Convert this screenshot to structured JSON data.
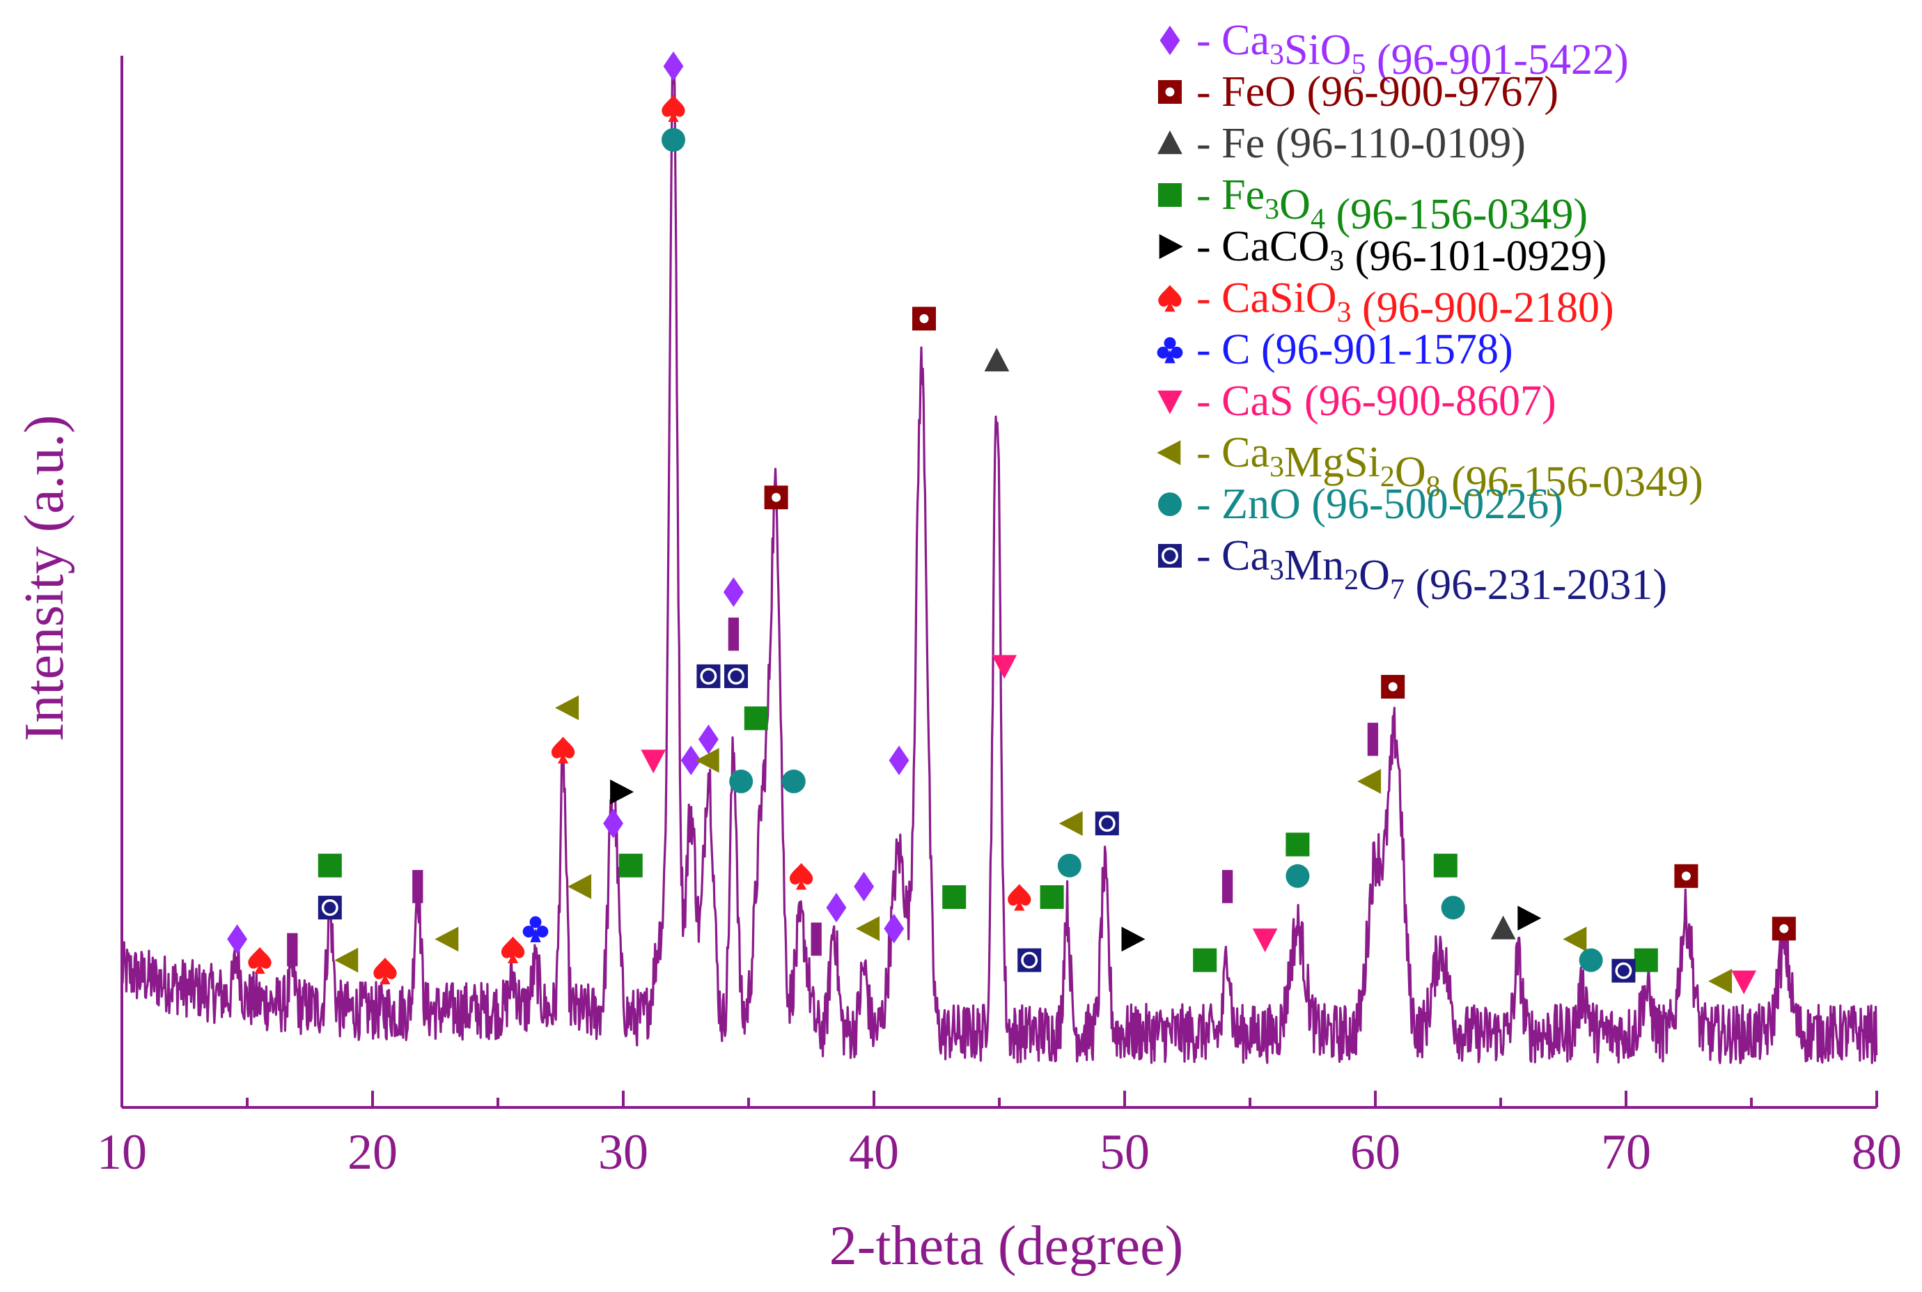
{
  "chart_data": {
    "type": "line",
    "title": "",
    "xlabel": "2-theta (degree)",
    "ylabel": "Intensity (a.u.)",
    "xlim": [
      10,
      80
    ],
    "ylim": [
      0,
      100
    ],
    "x_ticks": [
      "10",
      "20",
      "30",
      "40",
      "50",
      "60",
      "70",
      "80"
    ],
    "axis_color": "#8B1A8B",
    "line_color": "#8B1A8B",
    "baseline": 7,
    "noise": 2.8,
    "peaks": [
      {
        "x": 14.6,
        "h": 4,
        "w": 0.12
      },
      {
        "x": 16.8,
        "h": 3,
        "w": 0.12
      },
      {
        "x": 18.3,
        "h": 9,
        "w": 0.12
      },
      {
        "x": 21.8,
        "h": 12,
        "w": 0.12
      },
      {
        "x": 25.6,
        "h": 3,
        "w": 0.15
      },
      {
        "x": 26.5,
        "h": 4,
        "w": 0.15
      },
      {
        "x": 27.6,
        "h": 24,
        "w": 0.12
      },
      {
        "x": 29.6,
        "h": 22,
        "w": 0.18
      },
      {
        "x": 31.5,
        "h": 8,
        "w": 0.25
      },
      {
        "x": 32.0,
        "h": 90,
        "w": 0.16
      },
      {
        "x": 32.7,
        "h": 20,
        "w": 0.2
      },
      {
        "x": 33.4,
        "h": 24,
        "w": 0.2
      },
      {
        "x": 34.4,
        "h": 26,
        "w": 0.14
      },
      {
        "x": 35.6,
        "h": 22,
        "w": 0.3
      },
      {
        "x": 36.1,
        "h": 45,
        "w": 0.2
      },
      {
        "x": 37.1,
        "h": 10,
        "w": 0.25
      },
      {
        "x": 38.4,
        "h": 10,
        "w": 0.15
      },
      {
        "x": 39.6,
        "h": 6,
        "w": 0.15
      },
      {
        "x": 41.0,
        "h": 17,
        "w": 0.3
      },
      {
        "x": 41.9,
        "h": 63,
        "w": 0.22
      },
      {
        "x": 44.9,
        "h": 60,
        "w": 0.15
      },
      {
        "x": 47.7,
        "h": 12,
        "w": 0.12
      },
      {
        "x": 49.2,
        "h": 15,
        "w": 0.15
      },
      {
        "x": 54.1,
        "h": 8,
        "w": 0.12
      },
      {
        "x": 56.9,
        "h": 10,
        "w": 0.3
      },
      {
        "x": 60.0,
        "h": 16,
        "w": 0.3
      },
      {
        "x": 60.8,
        "h": 28,
        "w": 0.3
      },
      {
        "x": 62.6,
        "h": 8,
        "w": 0.3
      },
      {
        "x": 65.7,
        "h": 7,
        "w": 0.15
      },
      {
        "x": 68.3,
        "h": 4,
        "w": 0.2
      },
      {
        "x": 70.8,
        "h": 4,
        "w": 0.2
      },
      {
        "x": 72.4,
        "h": 11,
        "w": 0.25
      },
      {
        "x": 76.3,
        "h": 8,
        "w": 0.25
      }
    ],
    "markers": [
      {
        "phase": "Ca3SiO5",
        "positions": [
          [
            14.6,
            16
          ],
          [
            29.6,
            27
          ],
          [
            32.0,
            99
          ],
          [
            32.7,
            33
          ],
          [
            33.4,
            35
          ],
          [
            34.4,
            49
          ],
          [
            38.5,
            19
          ],
          [
            39.6,
            21
          ],
          [
            40.8,
            17
          ],
          [
            41.0,
            33
          ]
        ]
      },
      {
        "phase": "FeO",
        "positions": [
          [
            36.1,
            58
          ],
          [
            42.0,
            75
          ],
          [
            60.7,
            40
          ],
          [
            72.4,
            22
          ],
          [
            76.3,
            17
          ]
        ]
      },
      {
        "phase": "Fe",
        "positions": [
          [
            44.9,
            71
          ],
          [
            65.1,
            17
          ]
        ]
      },
      {
        "phase": "Fe3O4",
        "positions": [
          [
            18.3,
            23
          ],
          [
            30.3,
            23
          ],
          [
            35.3,
            37
          ],
          [
            43.2,
            20
          ],
          [
            47.1,
            20
          ],
          [
            53.2,
            14
          ],
          [
            56.9,
            25
          ],
          [
            62.8,
            23
          ],
          [
            70.8,
            14
          ]
        ]
      },
      {
        "phase": "CaCO3",
        "positions": [
          [
            29.9,
            30
          ],
          [
            50.3,
            16
          ],
          [
            66.1,
            18
          ]
        ]
      },
      {
        "phase": "CaSiO3",
        "positions": [
          [
            15.5,
            14
          ],
          [
            20.5,
            13
          ],
          [
            25.6,
            15
          ],
          [
            27.6,
            34
          ],
          [
            32.0,
            95
          ],
          [
            37.1,
            22
          ],
          [
            45.8,
            20
          ]
        ]
      },
      {
        "phase": "C",
        "positions": [
          [
            26.5,
            17
          ]
        ]
      },
      {
        "phase": "CaS",
        "positions": [
          [
            31.2,
            33
          ],
          [
            45.2,
            42
          ],
          [
            55.6,
            16
          ],
          [
            74.7,
            12
          ]
        ]
      },
      {
        "phase": "Ca3MgSi2O8",
        "positions": [
          [
            19.0,
            14
          ],
          [
            23.0,
            16
          ],
          [
            27.8,
            38
          ],
          [
            28.3,
            21
          ],
          [
            33.4,
            33
          ],
          [
            39.8,
            17
          ],
          [
            47.9,
            27
          ],
          [
            59.8,
            31
          ],
          [
            68.0,
            16
          ],
          [
            73.8,
            12
          ]
        ]
      },
      {
        "phase": "ZnO",
        "positions": [
          [
            32.0,
            92
          ],
          [
            34.7,
            31
          ],
          [
            36.8,
            31
          ],
          [
            47.8,
            23
          ],
          [
            56.9,
            22
          ],
          [
            63.1,
            19
          ],
          [
            68.6,
            14
          ]
        ]
      },
      {
        "phase": "Ca3Mn2O7",
        "positions": [
          [
            18.3,
            19
          ],
          [
            33.4,
            41
          ],
          [
            34.5,
            41
          ],
          [
            46.2,
            14
          ],
          [
            49.3,
            27
          ],
          [
            69.9,
            13
          ]
        ]
      },
      {
        "phase": "unassigned",
        "positions": [
          [
            16.8,
            15
          ],
          [
            21.8,
            21
          ],
          [
            34.4,
            45
          ],
          [
            37.7,
            16
          ],
          [
            54.1,
            21
          ],
          [
            59.9,
            35
          ]
        ]
      }
    ],
    "legend": [
      {
        "symbol": "diamond",
        "color": "#9B30FF",
        "base": "Ca",
        "sub1": "3",
        "mid": "SiO",
        "sub2": "5",
        "tail": "",
        "code": "(96-901-5422)"
      },
      {
        "symbol": "square-dot",
        "color": "#8B0000",
        "base": "FeO",
        "sub1": "",
        "mid": "",
        "sub2": "",
        "tail": "",
        "code": "(96-900-9767)"
      },
      {
        "symbol": "triangle-up",
        "color": "#3C3C3C",
        "base": "Fe",
        "sub1": "",
        "mid": "",
        "sub2": "",
        "tail": "",
        "code": "(96-110-0109)"
      },
      {
        "symbol": "square",
        "color": "#138A13",
        "base": "Fe",
        "sub1": "3",
        "mid": "O",
        "sub2": "4",
        "tail": "",
        "code": "(96-156-0349)"
      },
      {
        "symbol": "triangle-right",
        "color": "#000000",
        "base": "CaCO",
        "sub1": "3",
        "mid": "",
        "sub2": "",
        "tail": "",
        "code": "(96-101-0929)"
      },
      {
        "symbol": "spade",
        "color": "#FF1A1A",
        "base": "CaSiO",
        "sub1": "3",
        "mid": "",
        "sub2": "",
        "tail": "",
        "code": "(96-900-2180)"
      },
      {
        "symbol": "club",
        "color": "#1A1AFF",
        "base": "C",
        "sub1": "",
        "mid": "",
        "sub2": "",
        "tail": "",
        "code": "(96-901-1578)"
      },
      {
        "symbol": "triangle-down",
        "color": "#FF1A7A",
        "base": "CaS",
        "sub1": "",
        "mid": "",
        "sub2": "",
        "tail": "",
        "code": "(96-900-8607)"
      },
      {
        "symbol": "triangle-left",
        "color": "#808000",
        "base": "Ca",
        "sub1": "3",
        "mid": "MgSi",
        "sub2": "2",
        "tail": "O",
        "sub3": "8",
        "code": "(96-156-0349)"
      },
      {
        "symbol": "circle",
        "color": "#138A8A",
        "base": "ZnO",
        "sub1": "",
        "mid": "",
        "sub2": "",
        "tail": "",
        "code": "(96-500-0226)"
      },
      {
        "symbol": "square-circle",
        "color": "#1A1A80",
        "base": "Ca",
        "sub1": "3",
        "mid": "Mn",
        "sub2": "2",
        "tail": "O",
        "sub3": "7",
        "code": "(96-231-2031)"
      }
    ],
    "unassigned_color": "#8B1A8B"
  }
}
